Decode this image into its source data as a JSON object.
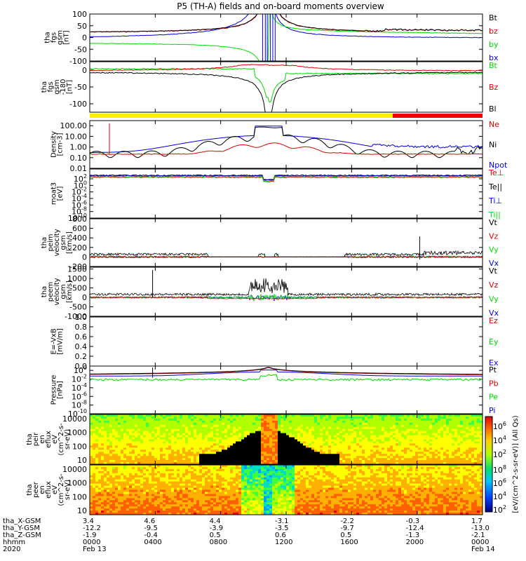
{
  "title": "P5 (TH-A) fields and on-board moments overview",
  "colors": {
    "black": "#000000",
    "red": "#e00000",
    "green": "#00dd00",
    "blue": "#0000e0",
    "yellow": "#ffee00",
    "flag_red": "#ee0000"
  },
  "chart_data": [
    {
      "type": "line",
      "ylabel": [
        "tha",
        "fgs",
        "gsm",
        "[nT]"
      ],
      "ylim": [
        -100,
        100
      ],
      "yticks": [
        "100",
        "50",
        "0",
        "-50",
        "-100"
      ],
      "series": [
        {
          "name": "Bt",
          "color": "black"
        },
        {
          "name": "bz",
          "color": "red"
        },
        {
          "name": "by",
          "color": "green"
        },
        {
          "name": "bx",
          "color": "blue"
        }
      ]
    },
    {
      "type": "line",
      "ylabel": [
        "tha",
        "fgs",
        "gsm",
        "-180",
        "[nT]"
      ],
      "ylim": [
        -125,
        25
      ],
      "yticks": [
        "0",
        "-50",
        "-100"
      ],
      "series": [
        {
          "name": "Bt",
          "color": "green"
        },
        {
          "name": "Bz",
          "color": "red"
        },
        {
          "name": "Bl",
          "color": "black"
        }
      ]
    },
    {
      "type": "line",
      "ylabel": [
        "Density",
        "[cm-3]"
      ],
      "yscale": "log",
      "ylim": [
        0.01,
        300
      ],
      "yticks": [
        "100.00",
        "10.00",
        "1.00",
        "0.10",
        "0.01"
      ],
      "series": [
        {
          "name": "Ne",
          "color": "red"
        },
        {
          "name": "Ni",
          "color": "black"
        },
        {
          "name": "Npot",
          "color": "blue"
        }
      ]
    },
    {
      "type": "line",
      "ylabel": [
        "moat3",
        "[eV]"
      ],
      "yscale": "log",
      "ylim": [
        1e-10,
        100000.0
      ],
      "yticks": [
        "10^2",
        "10^0",
        "10^-2",
        "10^-4",
        "10^-6",
        "10^-8",
        "10^-10"
      ],
      "series": [
        {
          "name": "Te⊥",
          "color": "red"
        },
        {
          "name": "Te||",
          "color": "black"
        },
        {
          "name": "Ti⊥",
          "color": "blue"
        },
        {
          "name": "Ti||",
          "color": "green"
        }
      ]
    },
    {
      "type": "line",
      "ylabel": [
        "tha",
        "peim",
        "velocity",
        "gsm",
        "[km/s]"
      ],
      "ylim": [
        -200,
        800
      ],
      "yticks": [
        "800",
        "600",
        "400",
        "200",
        "0",
        "-200"
      ],
      "series": [
        {
          "name": "Vt",
          "color": "black"
        },
        {
          "name": "Vz",
          "color": "red"
        },
        {
          "name": "Vy",
          "color": "green"
        },
        {
          "name": "Vx",
          "color": "blue"
        }
      ]
    },
    {
      "type": "line",
      "ylabel": [
        "tha",
        "peem",
        "velocity",
        "gsm",
        "[km/s]"
      ],
      "ylim": [
        -1000,
        1600
      ],
      "yticks": [
        "1500",
        "1000",
        "500",
        "0",
        "-500",
        "-1000"
      ],
      "series": [
        {
          "name": "Vt",
          "color": "black"
        },
        {
          "name": "Vz",
          "color": "red"
        },
        {
          "name": "Vy",
          "color": "green"
        },
        {
          "name": "Vx",
          "color": "blue"
        }
      ]
    },
    {
      "type": "line",
      "ylabel": [
        "E=-VxB",
        "[mV/m]"
      ],
      "ylim": [
        0,
        1
      ],
      "yticks": [
        "1.0",
        "0.8",
        "0.6",
        "0.4",
        "0.2",
        "0.0"
      ],
      "series": [
        {
          "name": "Ez",
          "color": "red"
        },
        {
          "name": "Ey",
          "color": "green"
        },
        {
          "name": "Ex",
          "color": "blue"
        }
      ]
    },
    {
      "type": "line",
      "ylabel": [
        "Pressure",
        "[nPa]"
      ],
      "yscale": "log",
      "ylim": [
        1e-10,
        10
      ],
      "yticks": [
        "10^0",
        "10^-2",
        "10^-4",
        "10^-6",
        "10^-8",
        "10^-10"
      ],
      "series": [
        {
          "name": "Pt",
          "color": "black"
        },
        {
          "name": "Pb",
          "color": "red"
        },
        {
          "name": "Pe",
          "color": "green"
        },
        {
          "name": "Pi",
          "color": "blue"
        }
      ]
    },
    {
      "type": "heatmap",
      "ylabel": [
        "tha",
        "peir",
        "en",
        "eflux",
        "eV",
        "(cm^2-s-",
        "sr-eV)"
      ],
      "yscale": "log",
      "ylim": [
        5,
        20000
      ],
      "yticks": [
        "10000",
        "1000",
        "100",
        "10"
      ]
    },
    {
      "type": "heatmap",
      "ylabel": [
        "tha",
        "peer",
        "en",
        "eflux",
        "eV",
        "(cm^2-s-",
        "sr-eV)"
      ],
      "yscale": "log",
      "ylim": [
        5,
        20000
      ],
      "yticks": [
        "10000",
        "1000",
        "100",
        "10"
      ]
    }
  ],
  "colorbar": {
    "label": "[eV/(cm^2-s-sr-eV)] (All Qs)",
    "upper_ticks": [
      "10^6",
      "10^4",
      "10^2"
    ],
    "lower_ticks": [
      "10^8",
      "10^6",
      "10^4",
      "10^2"
    ]
  },
  "xaxis": {
    "row_labels": [
      "tha_X-GSM",
      "tha_Y-GSM",
      "tha_Z-GSM",
      "hhmm",
      "2020"
    ],
    "columns": [
      {
        "x": "3.4",
        "y": "-12.2",
        "z": "-1.9",
        "hhmm": "0000",
        "date": "Feb 13"
      },
      {
        "x": "4.6",
        "y": "-9.5",
        "z": "-0.4",
        "hhmm": "0400",
        "date": ""
      },
      {
        "x": "4.4",
        "y": "-3.9",
        "z": "0.5",
        "hhmm": "0800",
        "date": ""
      },
      {
        "x": "-3.1",
        "y": "-3.5",
        "z": "0.6",
        "hhmm": "1200",
        "date": ""
      },
      {
        "x": "-2.2",
        "y": "-9.7",
        "z": "0.5",
        "hhmm": "1600",
        "date": ""
      },
      {
        "x": "-0.3",
        "y": "-12.4",
        "z": "-1.3",
        "hhmm": "2000",
        "date": ""
      },
      {
        "x": "1.7",
        "y": "-13.0",
        "z": "-2.1",
        "hhmm": "0000",
        "date": "Feb 14"
      }
    ]
  }
}
